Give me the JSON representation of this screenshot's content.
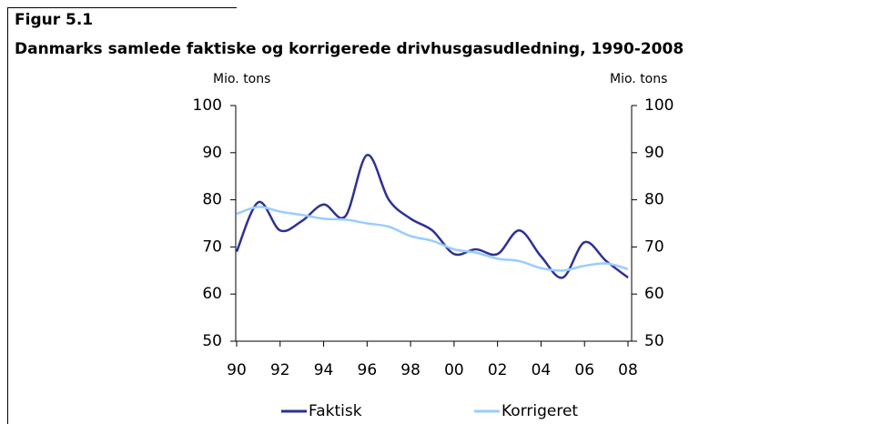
{
  "chart_data": {
    "type": "line",
    "figure_label": "Figur 5.1",
    "title": "Danmarks samlede faktiske og korrigerede drivhusgasudledning, 1990-2008",
    "y_label": "Mio. tons",
    "y2_label": "Mio. tons",
    "categories": [
      "90",
      null,
      "92",
      null,
      "94",
      null,
      "96",
      null,
      "98",
      null,
      "00",
      null,
      "02",
      null,
      "04",
      null,
      "06",
      null,
      "08"
    ],
    "series": [
      {
        "name": "Faktisk",
        "color": "#2e3192",
        "values": [
          69,
          79.5,
          73.5,
          75.5,
          79,
          76.5,
          89.5,
          80,
          76,
          73.5,
          68.5,
          69.5,
          68.5,
          73.5,
          68,
          63.5,
          71,
          67,
          63.5
        ]
      },
      {
        "name": "Korrigeret",
        "color": "#99ccff",
        "values": [
          77,
          78.5,
          77.5,
          76.8,
          76,
          75.8,
          75,
          74.3,
          72.3,
          71.3,
          69.5,
          68.8,
          67.5,
          67,
          65.5,
          65,
          66,
          66.5,
          65.3
        ]
      }
    ],
    "ylim": [
      50,
      100
    ],
    "yticks": [
      50,
      60,
      70,
      80,
      90,
      100
    ],
    "y2lim": [
      50,
      100
    ],
    "y2ticks": [
      50,
      60,
      70,
      80,
      90,
      100
    ],
    "grid": false,
    "legend": "bottom"
  }
}
